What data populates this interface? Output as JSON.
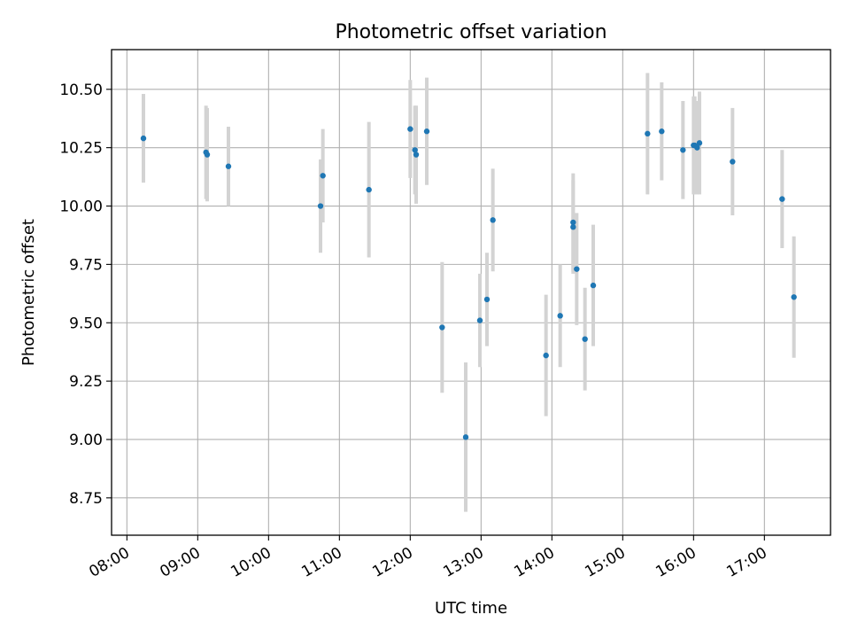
{
  "chart_data": {
    "type": "scatter",
    "title": "Photometric offset variation",
    "xlabel": "UTC time",
    "ylabel": "Photometric offset",
    "grid": true,
    "xlim": [
      "07:47",
      "17:56"
    ],
    "ylim": [
      8.59,
      10.67
    ],
    "x_ticks": [
      "08:00",
      "09:00",
      "10:00",
      "11:00",
      "12:00",
      "13:00",
      "14:00",
      "15:00",
      "16:00",
      "17:00"
    ],
    "y_ticks": [
      "8.75",
      "9.00",
      "9.25",
      "9.50",
      "9.75",
      "10.00",
      "10.25",
      "10.50"
    ],
    "colors": {
      "point": "#1f77b4",
      "errorbar": "#d3d3d3",
      "grid": "#b0b0b0"
    },
    "points": [
      {
        "x": "08:14",
        "y": 10.29,
        "err": 0.19
      },
      {
        "x": "09:07",
        "y": 10.23,
        "err": 0.2
      },
      {
        "x": "09:08",
        "y": 10.22,
        "err": 0.2
      },
      {
        "x": "09:26",
        "y": 10.17,
        "err": 0.17
      },
      {
        "x": "10:44",
        "y": 10.0,
        "err": 0.2
      },
      {
        "x": "10:46",
        "y": 10.13,
        "err": 0.2
      },
      {
        "x": "11:25",
        "y": 10.07,
        "err": 0.29
      },
      {
        "x": "12:00",
        "y": 10.33,
        "err": 0.21
      },
      {
        "x": "12:04",
        "y": 10.24,
        "err": 0.19
      },
      {
        "x": "12:05",
        "y": 10.22,
        "err": 0.21
      },
      {
        "x": "12:14",
        "y": 10.32,
        "err": 0.23
      },
      {
        "x": "12:27",
        "y": 9.48,
        "err": 0.28
      },
      {
        "x": "12:47",
        "y": 9.01,
        "err": 0.32
      },
      {
        "x": "12:59",
        "y": 9.51,
        "err": 0.2
      },
      {
        "x": "13:05",
        "y": 9.6,
        "err": 0.2
      },
      {
        "x": "13:10",
        "y": 9.94,
        "err": 0.22
      },
      {
        "x": "13:55",
        "y": 9.36,
        "err": 0.26
      },
      {
        "x": "14:07",
        "y": 9.53,
        "err": 0.22
      },
      {
        "x": "14:18",
        "y": 9.93,
        "err": 0.21
      },
      {
        "x": "14:18",
        "y": 9.91,
        "err": 0.2
      },
      {
        "x": "14:21",
        "y": 9.73,
        "err": 0.24
      },
      {
        "x": "14:28",
        "y": 9.43,
        "err": 0.22
      },
      {
        "x": "14:35",
        "y": 9.66,
        "err": 0.26
      },
      {
        "x": "15:21",
        "y": 10.31,
        "err": 0.26
      },
      {
        "x": "15:33",
        "y": 10.32,
        "err": 0.21
      },
      {
        "x": "15:51",
        "y": 10.24,
        "err": 0.21
      },
      {
        "x": "16:00",
        "y": 10.26,
        "err": 0.21
      },
      {
        "x": "16:01",
        "y": 10.26,
        "err": 0.21
      },
      {
        "x": "16:03",
        "y": 10.25,
        "err": 0.2
      },
      {
        "x": "16:05",
        "y": 10.27,
        "err": 0.22
      },
      {
        "x": "16:33",
        "y": 10.19,
        "err": 0.23
      },
      {
        "x": "17:15",
        "y": 10.03,
        "err": 0.21
      },
      {
        "x": "17:25",
        "y": 9.61,
        "err": 0.26
      }
    ]
  }
}
